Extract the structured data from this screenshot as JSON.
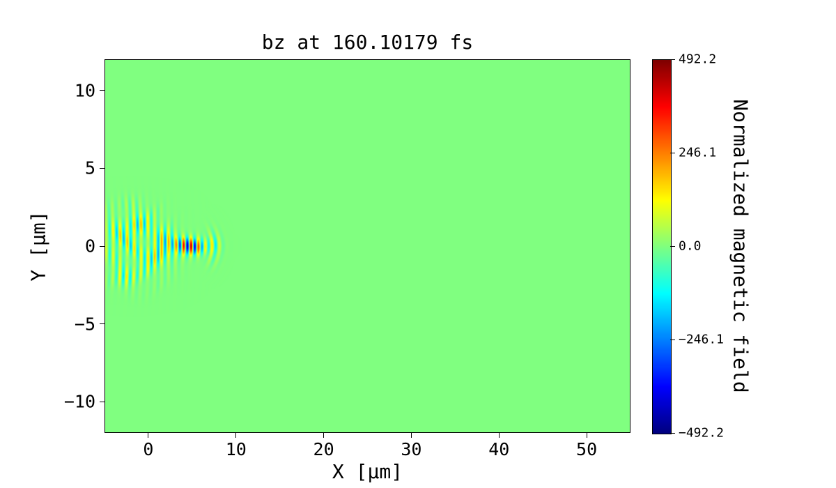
{
  "window": {
    "background_color": "#ffffff"
  },
  "chart_data": {
    "type": "heatmap",
    "title": "bz at 160.10179 fs",
    "xlabel": "X [μm]",
    "ylabel": "Y [μm]",
    "xlim": [
      -5,
      55
    ],
    "ylim": [
      -12,
      12
    ],
    "grid": false,
    "x_tick_values": [
      0,
      10,
      20,
      30,
      40,
      50
    ],
    "x_tick_labels": [
      "0",
      "10",
      "20",
      "30",
      "40",
      "50"
    ],
    "y_tick_values": [
      10,
      5,
      0,
      -5,
      -10
    ],
    "y_tick_labels": [
      "10",
      "5",
      "0",
      "−5",
      "−10"
    ],
    "colormap": "jet",
    "background_value": 0.0,
    "background_color_rendered": "#80ff80",
    "colorbar": {
      "label": "Normalized magnetic field",
      "position": "right",
      "vmin": -492.2,
      "vmax": 492.2,
      "tick_values": [
        492.2,
        246.1,
        0.0,
        -246.1,
        -492.2
      ],
      "tick_labels": [
        "492.2",
        "246.1",
        "0.0",
        "−246.1",
        "−492.2"
      ]
    },
    "field": {
      "description": "Laser pulse wave packet centered on y=0 spanning x≈-5 to x≈8: vertical fringes of alternating sign with period ≈0.8 μm; strong core (|bz| up to ≈492) at x≈3–7, y≈±0.5; weaker speckled fringes spanning y≈±3.5 for x<1; field ≈ 0 (green) everywhere else.",
      "fringe_wavelength_um": 0.8,
      "peak_amplitude": 492.2,
      "packets": [
        {
          "cx": -1.8,
          "cy": 0,
          "sx": 3.2,
          "sy": 2.6,
          "py": 4,
          "wavelength": 0.8,
          "amplitude": 235,
          "curvature": 0.015,
          "phase": 0,
          "speckle": 1.0
        },
        {
          "cx": 1.6,
          "cy": 0,
          "sx": 1.6,
          "sy": 1.1,
          "py": 2,
          "wavelength": 0.8,
          "amplitude": 210,
          "curvature": 0.04,
          "phase": 0.8,
          "speckle": 0.8
        },
        {
          "cx": 4.6,
          "cy": 0,
          "sx": 2.0,
          "sy": 0.55,
          "py": 2,
          "wavelength": 0.85,
          "amplitude": 490,
          "curvature": 0.08,
          "phase": 1.6,
          "speckle": 0.35
        },
        {
          "cx": 7.3,
          "cy": 0,
          "sx": 0.9,
          "sy": 0.9,
          "py": 2,
          "wavelength": 0.9,
          "amplitude": 175,
          "curvature": 0.3,
          "phase": 0,
          "speckle": 0.5
        }
      ]
    }
  }
}
